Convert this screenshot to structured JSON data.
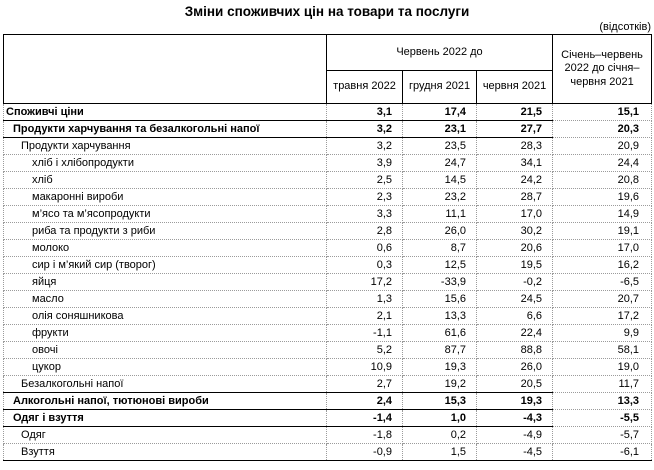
{
  "title": "Зміни споживчих цін на товари та послуги",
  "unit_note": "(відсотків)",
  "table": {
    "group_header": "Червень 2022 до",
    "sub_headers": [
      "травня 2022",
      "грудня 2021",
      "червня 2021"
    ],
    "period_header": "Січень–червень 2022 до січня–червня 2021",
    "rows": [
      {
        "label": "Споживчі ціни",
        "indent": 0,
        "bold": true,
        "values": [
          "3,1",
          "17,4",
          "21,5",
          "15,1"
        ]
      },
      {
        "label": "Продукти харчування та безалкогольні напої",
        "indent": 1,
        "bold": true,
        "values": [
          "3,2",
          "23,1",
          "27,7",
          "20,3"
        ]
      },
      {
        "label": "Продукти харчування",
        "indent": 2,
        "bold": false,
        "values": [
          "3,2",
          "23,5",
          "28,3",
          "20,9"
        ]
      },
      {
        "label": "хліб і хлібопродукти",
        "indent": 3,
        "bold": false,
        "values": [
          "3,9",
          "24,7",
          "34,1",
          "24,4"
        ]
      },
      {
        "label": "хліб",
        "indent": 3,
        "bold": false,
        "values": [
          "2,5",
          "14,5",
          "24,2",
          "20,8"
        ]
      },
      {
        "label": "макаронні вироби",
        "indent": 3,
        "bold": false,
        "values": [
          "2,3",
          "23,2",
          "28,7",
          "19,6"
        ]
      },
      {
        "label": "м’ясо та м’ясопродукти",
        "indent": 3,
        "bold": false,
        "values": [
          "3,3",
          "11,1",
          "17,0",
          "14,9"
        ]
      },
      {
        "label": "риба та продукти з риби",
        "indent": 3,
        "bold": false,
        "values": [
          "2,8",
          "26,0",
          "30,2",
          "19,1"
        ]
      },
      {
        "label": "молоко",
        "indent": 3,
        "bold": false,
        "values": [
          "0,6",
          "8,7",
          "20,6",
          "17,0"
        ]
      },
      {
        "label": "сир і м’який сир (творог)",
        "indent": 3,
        "bold": false,
        "values": [
          "0,3",
          "12,5",
          "19,5",
          "16,2"
        ]
      },
      {
        "label": "яйця",
        "indent": 3,
        "bold": false,
        "values": [
          "17,2",
          "-33,9",
          "-0,2",
          "-6,5"
        ]
      },
      {
        "label": "масло",
        "indent": 3,
        "bold": false,
        "values": [
          "1,3",
          "15,6",
          "24,5",
          "20,7"
        ]
      },
      {
        "label": "олія соняшникова",
        "indent": 3,
        "bold": false,
        "values": [
          "2,1",
          "13,3",
          "6,6",
          "17,2"
        ]
      },
      {
        "label": "фрукти",
        "indent": 3,
        "bold": false,
        "values": [
          "-1,1",
          "61,6",
          "22,4",
          "9,9"
        ]
      },
      {
        "label": "овочі",
        "indent": 3,
        "bold": false,
        "values": [
          "5,2",
          "87,7",
          "88,8",
          "58,1"
        ]
      },
      {
        "label": "цукор",
        "indent": 3,
        "bold": false,
        "values": [
          "10,9",
          "19,3",
          "26,0",
          "19,0"
        ]
      },
      {
        "label": "Безалкогольні напої",
        "indent": 2,
        "bold": false,
        "values": [
          "2,7",
          "19,2",
          "20,5",
          "11,7"
        ]
      },
      {
        "label": "Алкогольні напої, тютюнові вироби",
        "indent": 1,
        "bold": true,
        "values": [
          "2,4",
          "15,3",
          "19,3",
          "13,3"
        ]
      },
      {
        "label": "Одяг і взуття",
        "indent": 1,
        "bold": true,
        "values": [
          "-1,4",
          "1,0",
          "-4,3",
          "-5,5"
        ]
      },
      {
        "label": "Одяг",
        "indent": 2,
        "bold": false,
        "values": [
          "-1,8",
          "0,2",
          "-4,9",
          "-5,7"
        ]
      },
      {
        "label": "Взуття",
        "indent": 2,
        "bold": false,
        "values": [
          "-0,9",
          "1,5",
          "-4,5",
          "-6,1"
        ]
      }
    ]
  }
}
